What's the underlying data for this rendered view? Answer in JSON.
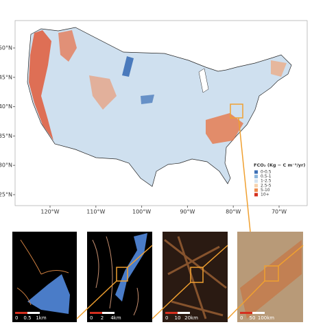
{
  "map": {
    "lat_ticks": [
      {
        "value": 50,
        "label": "50°N"
      },
      {
        "value": 45,
        "label": "45°N"
      },
      {
        "value": 40,
        "label": "40°N"
      },
      {
        "value": 35,
        "label": "35°N"
      },
      {
        "value": 30,
        "label": "30°N"
      },
      {
        "value": 25,
        "label": "25°N"
      }
    ],
    "lon_ticks": [
      {
        "value": -120,
        "label": "120°W"
      },
      {
        "value": -110,
        "label": "110°W"
      },
      {
        "value": -100,
        "label": "100°W"
      },
      {
        "value": -90,
        "label": "90°W"
      },
      {
        "value": -80,
        "label": "80°W"
      },
      {
        "value": -70,
        "label": "70°W"
      }
    ]
  },
  "legend": {
    "title": "FCO₂ (Kg − C m⁻²/yr)",
    "items": [
      {
        "label": "0-0.5",
        "color": "#3b6fb6"
      },
      {
        "label": "0.5-1",
        "color": "#8db6dc"
      },
      {
        "label": "1-2.5",
        "color": "#d4e3f0"
      },
      {
        "label": "2.5-5",
        "color": "#f5d2ae"
      },
      {
        "label": "5-10",
        "color": "#ee8a4c"
      },
      {
        "label": "10+",
        "color": "#d42f1f"
      }
    ]
  },
  "insets": [
    {
      "scale_labels": [
        "0",
        "0.5",
        "1km"
      ]
    },
    {
      "scale_labels": [
        "0",
        "2",
        "4km"
      ]
    },
    {
      "scale_labels": [
        "0",
        "10",
        "20km"
      ]
    },
    {
      "scale_labels": [
        "0",
        "50",
        "100km"
      ]
    }
  ]
}
